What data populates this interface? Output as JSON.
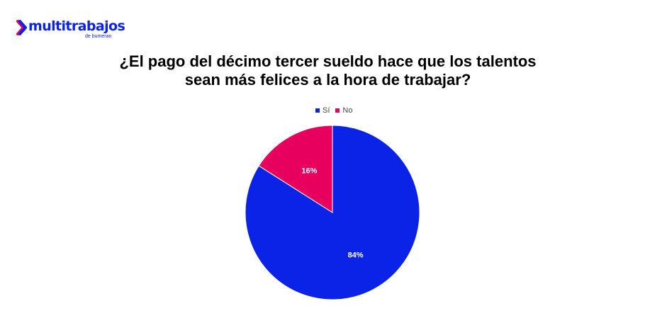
{
  "brand": {
    "name": "multitrabajos",
    "tagline": "de bumeran",
    "color": "#0a23e6"
  },
  "chart_data": {
    "type": "pie",
    "title_lines": [
      "¿El pago del décimo tercer sueldo hace que los talentos",
      "sean más felices a la hora de trabajar?"
    ],
    "legend_position": "top",
    "categories": [
      "Sí",
      "No"
    ],
    "values": [
      84,
      16
    ],
    "labels": [
      "84%",
      "16%"
    ],
    "colors": [
      "#0a23e6",
      "#e8005f"
    ]
  }
}
